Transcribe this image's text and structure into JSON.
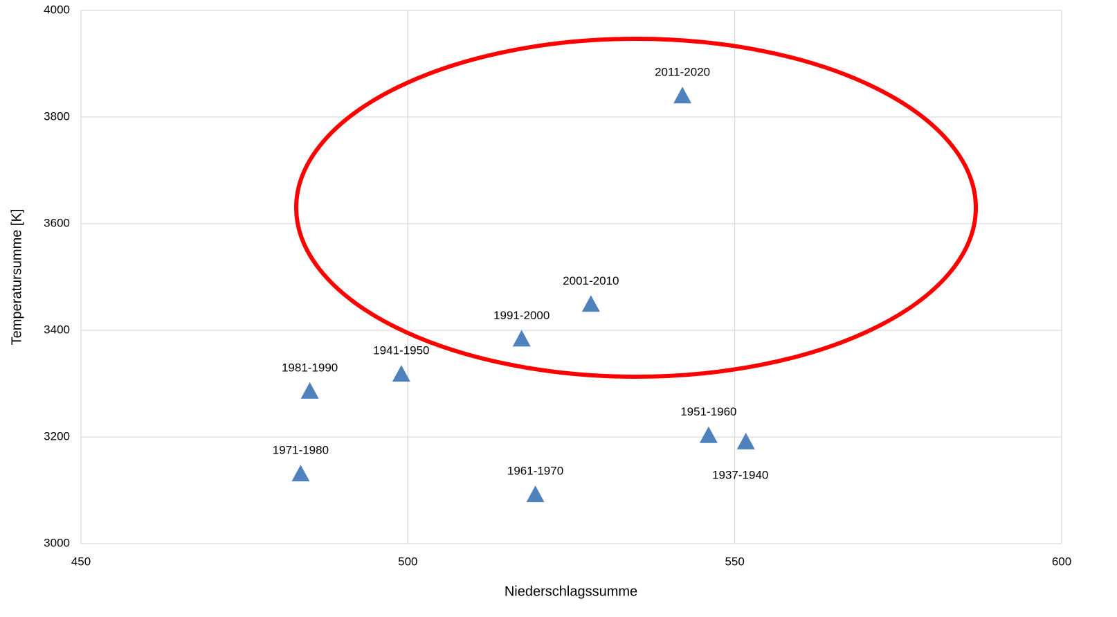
{
  "chart_data": {
    "type": "scatter",
    "x_label": "Niederschlagssumme",
    "y_label": "Temperatursumme [K]",
    "labels": [
      "2011-2020",
      "2001-2010",
      "1991-2000",
      "1941-1950",
      "1981-1990",
      "1971-1980",
      "1961-1970",
      "1951-1960",
      "1937-1940"
    ],
    "label_position": [
      "above",
      "above",
      "above",
      "above",
      "above",
      "above",
      "above",
      "above",
      "below"
    ],
    "x": [
      542,
      528,
      517.4,
      499,
      485,
      483.6,
      519.5,
      546,
      551.7
    ],
    "values": [
      3840,
      3449,
      3384,
      3318,
      3286,
      3131,
      3092,
      3203,
      3191
    ],
    "color": "#4f81bd",
    "xlim": [
      450,
      600
    ],
    "xticks": [
      450,
      500,
      550,
      600
    ],
    "ylim": [
      3000,
      4000
    ],
    "yticks": [
      3000,
      3200,
      3400,
      3600,
      3800,
      4000
    ],
    "grid": true
  }
}
